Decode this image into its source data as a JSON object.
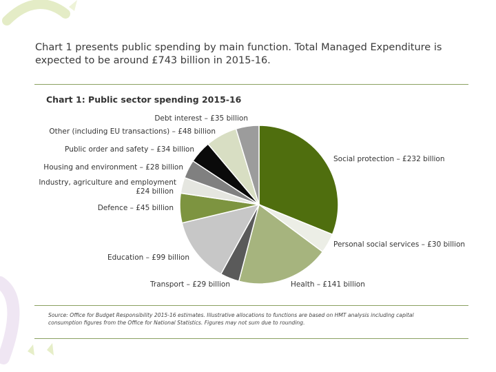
{
  "intro_text": "Chart 1 presents public spending by main function. Total Managed Expenditure is expected to be around £743 billion in 2015-16.",
  "chart_data": {
    "type": "pie",
    "title": "Chart 1: Public sector spending 2015-16",
    "unit": "£ billion",
    "total": 743,
    "slices": [
      {
        "name": "Social protection",
        "value": 232,
        "color": "#4f6e0e",
        "label": "Social protection – £232 billion"
      },
      {
        "name": "Personal social services",
        "value": 30,
        "color": "#eceee6",
        "label": "Personal social services – £30 billion"
      },
      {
        "name": "Health",
        "value": 141,
        "color": "#a6b47e",
        "label": "Health – £141 billion"
      },
      {
        "name": "Transport",
        "value": 29,
        "color": "#5a5a5a",
        "label": "Transport – £29 billion"
      },
      {
        "name": "Education",
        "value": 99,
        "color": "#c7c7c7",
        "label": "Education – £99 billion"
      },
      {
        "name": "Defence",
        "value": 45,
        "color": "#7d9440",
        "label": "Defence – £45 billion"
      },
      {
        "name": "Industry, agriculture and employment",
        "value": 24,
        "color": "#e5e6e0",
        "label": "Industry, agriculture and employment\n£24 billion"
      },
      {
        "name": "Housing and environment",
        "value": 28,
        "color": "#808080",
        "label": "Housing and environment – £28 billion"
      },
      {
        "name": "Public order and safety",
        "value": 34,
        "color": "#0a0a0a",
        "label": "Public order and safety – £34 billion"
      },
      {
        "name": "Other (including EU transactions)",
        "value": 48,
        "color": "#d8dec3",
        "label": "Other (including EU transactions) – £48 billion"
      },
      {
        "name": "Debt interest",
        "value": 35,
        "color": "#9c9c9c",
        "label": "Debt interest – £35 billion"
      }
    ]
  },
  "source_note": "Source: Office for Budget Responsibility 2015-16 estimates. Illustrative allocations to functions are based on HMT analysis including capital consumption figures from the Office for National Statistics. Figures may not sum due to rounding."
}
